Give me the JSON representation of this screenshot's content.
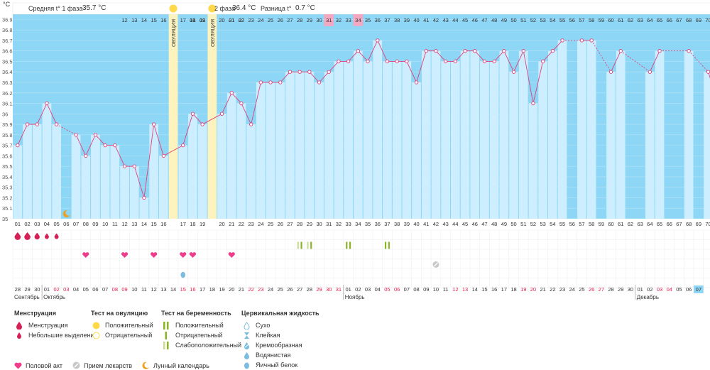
{
  "unit_label": "°C",
  "header": {
    "phase1_label": "Средняя t° 1 фаза",
    "phase1_value": "35.7 °С",
    "phase2_label": "2 фаза",
    "phase2_value": "36.4 °С",
    "diff_label": "Разница t°",
    "diff_value": "0.7 °С"
  },
  "colors": {
    "phase_bg": "#8ed6f5",
    "bar": "#cdeeff",
    "line": "#e0407a",
    "ovulation": "#fcf3bf",
    "ovulation_dot": "#ffd94a",
    "period": "#d61f54",
    "pregnancy_green": "#8ab626",
    "heart": "#f03c8c",
    "highlight_pink": "#f4a7c0",
    "highlight_blue": "#8ed6f5"
  },
  "chart_data": {
    "type": "line",
    "title": "Базальная температура",
    "ylabel": "°C",
    "ylim": [
      35.0,
      36.9
    ],
    "y_ticks": [
      "36.9",
      "36.8",
      "36.7",
      "36.6",
      "36.5",
      "36.4",
      "36.3",
      "36.2",
      "36.1",
      "36",
      "35.9",
      "35.8",
      "35.7",
      "35.6",
      "35.5",
      "35.4",
      "35.3",
      "35.2",
      "35.1",
      "35"
    ],
    "cycle_days": [
      "01",
      "02",
      "03",
      "04",
      "05",
      "06",
      "07",
      "08",
      "09",
      "10",
      "11",
      "12",
      "13",
      "14",
      "15",
      "16",
      "17",
      "18",
      "19",
      "20",
      "21",
      "22",
      "23",
      "24",
      "25",
      "26",
      "27",
      "28",
      "29",
      "30",
      "31",
      "32",
      "33",
      "34",
      "35",
      "36",
      "37",
      "38",
      "39",
      "40",
      "41",
      "42",
      "43",
      "44",
      "45",
      "46",
      "47",
      "48",
      "49",
      "50",
      "51",
      "52",
      "53",
      "54",
      "55",
      "56",
      "57",
      "58",
      "59",
      "60",
      "61",
      "62",
      "63",
      "64",
      "65",
      "66",
      "67",
      "68",
      "69",
      "70",
      "71"
    ],
    "temperatures": [
      35.7,
      35.9,
      35.9,
      36.1,
      35.9,
      null,
      35.8,
      35.6,
      35.8,
      35.7,
      35.7,
      35.5,
      35.5,
      35.2,
      35.9,
      35.6,
      35.7,
      36.0,
      35.9,
      36.0,
      36.2,
      36.1,
      35.9,
      36.3,
      36.3,
      36.3,
      36.4,
      36.4,
      36.4,
      36.3,
      36.4,
      36.5,
      36.5,
      36.6,
      36.5,
      36.7,
      36.5,
      36.5,
      36.5,
      36.3,
      36.6,
      36.6,
      36.5,
      36.5,
      36.6,
      36.6,
      36.5,
      36.5,
      36.6,
      36.4,
      36.6,
      36.1,
      36.5,
      36.6,
      36.7,
      null,
      36.7,
      36.7,
      null,
      36.4,
      36.6,
      null,
      null,
      36.4,
      36.6,
      null,
      null,
      36.6,
      null,
      36.4,
      36.1
    ],
    "ovulation_top_labels": [
      "",
      "01",
      "02",
      "",
      "01",
      "02"
    ],
    "ovulation_label": "ОВУЛЯЦИЯ",
    "dates": [
      "28",
      "29",
      "30",
      "01",
      "02",
      "03",
      "04",
      "05",
      "06",
      "07",
      "08",
      "09",
      "10",
      "11",
      "12",
      "13",
      "14",
      "15",
      "16",
      "17",
      "18",
      "19",
      "20",
      "21",
      "22",
      "23",
      "24",
      "25",
      "26",
      "27",
      "28",
      "29",
      "30",
      "31",
      "01",
      "02",
      "03",
      "04",
      "05",
      "06",
      "07",
      "08",
      "09",
      "10",
      "11",
      "12",
      "13",
      "14",
      "15",
      "16",
      "17",
      "18",
      "19",
      "20",
      "21",
      "22",
      "23",
      "24",
      "25",
      "26",
      "27",
      "28",
      "29",
      "30",
      "01",
      "02",
      "03",
      "04",
      "05",
      "06",
      "07"
    ],
    "months": [
      "Сентябрь",
      "Октябрь",
      "Ноябрь",
      "Декабрь"
    ],
    "menstruation": [
      "heavy",
      "heavy",
      "medium",
      "light",
      "light"
    ],
    "pregnancy_tests": [
      {
        "day": "28",
        "result": "Слабоположительный"
      },
      {
        "day": "29",
        "result": "Слабоположительный"
      },
      {
        "day": "33",
        "result": "Положительный"
      },
      {
        "day": "37",
        "result": "Положительный"
      }
    ],
    "intercourse_days": [
      "08",
      "12",
      "15",
      "17",
      "18",
      "21"
    ],
    "medication_days": [
      "42"
    ],
    "cervical_days": [
      {
        "day": "17",
        "type": "Яичный белок"
      }
    ],
    "lunar_days": [
      "06"
    ]
  },
  "legend": {
    "menstruation": {
      "title": "Менструация",
      "items": [
        "Менструация",
        "Небольшие выделения"
      ]
    },
    "ovulation_test": {
      "title": "Тест на овуляцию",
      "items": [
        "Положительный",
        "Отрицательный"
      ]
    },
    "pregnancy_test": {
      "title": "Тест на беременность",
      "items": [
        "Положительный",
        "Отрицательный",
        "Слабоположительный"
      ]
    },
    "cervical": {
      "title": "Цервикальная жидкость",
      "items": [
        "Сухо",
        "Клейкая",
        "Кремообразная",
        "Водянистая",
        "Яичный белок"
      ]
    },
    "bottom": [
      "Половой акт",
      "Прием лекарств",
      "Лунный календарь"
    ]
  }
}
